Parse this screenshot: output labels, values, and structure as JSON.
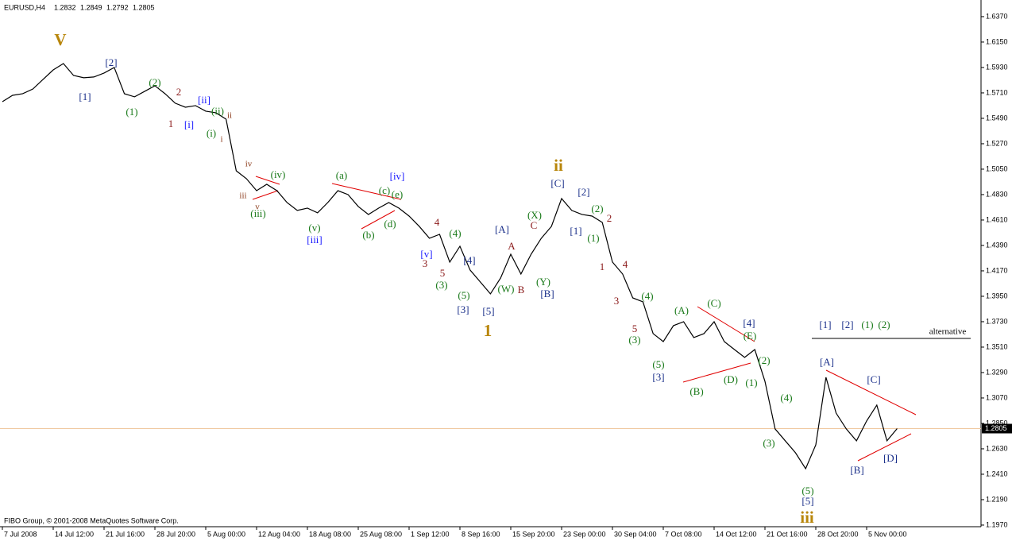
{
  "chart_data": {
    "type": "line",
    "title": "EURUSD,H4",
    "ohlc": [
      1.2832,
      1.2849,
      1.2792,
      1.2805
    ],
    "footer": "FIBO Group, © 2001-2008 MetaQuotes Software Corp.",
    "categories": [
      "7 Jul 2008",
      null,
      null,
      null,
      null,
      "14 Jul 12:00",
      null,
      null,
      null,
      null,
      "21 Jul 16:00",
      null,
      null,
      null,
      null,
      "28 Jul 20:00",
      null,
      null,
      null,
      null,
      "5 Aug 00:00",
      null,
      null,
      null,
      null,
      "12 Aug 04:00",
      null,
      null,
      null,
      null,
      "18 Aug 08:00",
      null,
      null,
      null,
      null,
      "25 Aug 08:00",
      null,
      null,
      null,
      null,
      "1 Sep 12:00",
      null,
      null,
      null,
      null,
      "8 Sep 16:00",
      null,
      null,
      null,
      null,
      "15 Sep 20:00",
      null,
      null,
      null,
      null,
      "23 Sep 00:00",
      null,
      null,
      null,
      null,
      "30 Sep 04:00",
      null,
      null,
      null,
      null,
      "7 Oct 08:00",
      null,
      null,
      null,
      null,
      "14 Oct 12:00",
      null,
      null,
      null,
      null,
      "21 Oct 16:00",
      null,
      null,
      null,
      null,
      "28 Oct 20:00",
      null,
      null,
      null,
      null,
      "5 Nov 00:00",
      null,
      null,
      null
    ],
    "values": [
      1.5634,
      1.5689,
      1.5703,
      1.5744,
      1.5827,
      1.5909,
      1.5964,
      1.5861,
      1.5841,
      1.5848,
      1.5882,
      1.593,
      1.5703,
      1.5676,
      1.5724,
      1.5772,
      1.5703,
      1.5621,
      1.5586,
      1.56,
      1.5552,
      1.5538,
      1.5483,
      1.5036,
      1.4968,
      1.4864,
      1.4919,
      1.4864,
      1.4761,
      1.4693,
      1.4713,
      1.4672,
      1.4761,
      1.4864,
      1.483,
      1.4727,
      1.4658,
      1.4713,
      1.4761,
      1.4713,
      1.4644,
      1.4555,
      1.4452,
      1.4486,
      1.4246,
      1.4383,
      1.4177,
      1.4074,
      1.3971,
      1.4108,
      1.4314,
      1.4143,
      1.4314,
      1.4452,
      1.4555,
      1.4796,
      1.4693,
      1.4658,
      1.4644,
      1.4589,
      1.4246,
      1.4143,
      1.3936,
      1.3902,
      1.3627,
      1.3558,
      1.3696,
      1.373,
      1.3593,
      1.3627,
      1.373,
      1.3558,
      1.3489,
      1.3421,
      1.3489,
      1.3214,
      1.2802,
      1.2699,
      1.2596,
      1.2458,
      1.2664,
      1.3249,
      1.2939,
      1.2802,
      1.2699,
      1.2871,
      1.3008,
      1.2699,
      1.2805
    ],
    "color": "#000000",
    "current_price": 1.2805,
    "ylim": [
      1.1956,
      1.6514
    ],
    "yticks": [
      {
        "value": 1.637,
        "label": "1.6370"
      },
      {
        "value": 1.615,
        "label": "1.6150"
      },
      {
        "value": 1.593,
        "label": "1.5930"
      },
      {
        "value": 1.571,
        "label": "1.5710"
      },
      {
        "value": 1.549,
        "label": "1.5490"
      },
      {
        "value": 1.527,
        "label": "1.5270"
      },
      {
        "value": 1.505,
        "label": "1.5050"
      },
      {
        "value": 1.483,
        "label": "1.4830"
      },
      {
        "value": 1.461,
        "label": "1.4610"
      },
      {
        "value": 1.439,
        "label": "1.4390"
      },
      {
        "value": 1.417,
        "label": "1.4170"
      },
      {
        "value": 1.395,
        "label": "1.3950"
      },
      {
        "value": 1.373,
        "label": "1.3730"
      },
      {
        "value": 1.351,
        "label": "1.3510"
      },
      {
        "value": 1.329,
        "label": "1.3290"
      },
      {
        "value": 1.307,
        "label": "1.3070"
      },
      {
        "value": 1.285,
        "label": "1.2850"
      },
      {
        "value": 1.263,
        "label": "1.2630"
      },
      {
        "value": 1.241,
        "label": "1.2410"
      },
      {
        "value": 1.219,
        "label": "1.2190"
      },
      {
        "value": 1.197,
        "label": "1.1970"
      }
    ],
    "grid": false,
    "annotations": [
      "V",
      "[2]",
      "[1]",
      "(2)",
      "(1)",
      "2",
      "1",
      "[ii]",
      "[i]",
      "(ii)",
      "(i)",
      "ii",
      "i",
      "iv",
      "iii",
      "v",
      "(iii)",
      "(iv)",
      "(v)",
      "[iii]",
      "(a)",
      "(b)",
      "(c)",
      "(d)",
      "(e)",
      "[iv]",
      "4",
      "[v]",
      "3",
      "5",
      "(4)",
      "(3)",
      "(5)",
      "[4]",
      "[3]",
      "[5]",
      "1",
      "[A]",
      "A",
      "(W)",
      "B",
      "C",
      "(X)",
      "(Y)",
      "[B]",
      "ii",
      "[C]",
      "[2]",
      "[1]",
      "(2)",
      "(1)",
      "2",
      "1",
      "4",
      "3",
      "5",
      "(4)",
      "(3)",
      "(5)",
      "[3]",
      "(A)",
      "(C)",
      "(B)",
      "(D)",
      "(E)",
      "[4]",
      "(2)",
      "(1)",
      "(4)",
      "(3)",
      "(5)",
      "[5]",
      "iii",
      "[A]",
      "[C]",
      "[B]",
      "[D]",
      "[1]",
      "[2]",
      "(1)",
      "(2)",
      "alternative"
    ]
  }
}
